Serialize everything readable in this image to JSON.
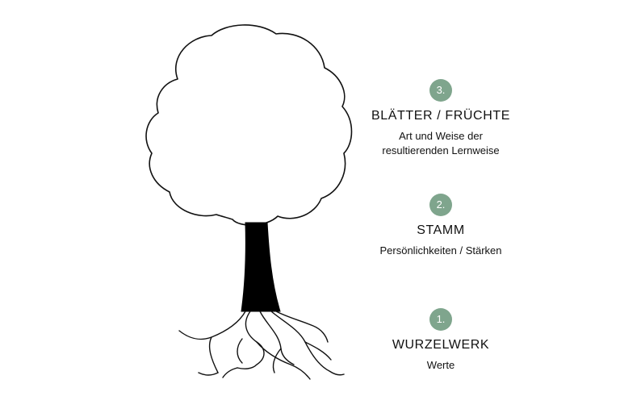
{
  "levels": [
    {
      "number": "3.",
      "heading": "BLÄTTER / FRÜCHTE",
      "description_line1": "Art und Weise der",
      "description_line2": "resultierenden Lernweise"
    },
    {
      "number": "2.",
      "heading": "STAMM",
      "description_line1": "Persönlichkeiten / Stärken",
      "description_line2": ""
    },
    {
      "number": "1.",
      "heading": "WURZELWERK",
      "description_line1": "Werte",
      "description_line2": ""
    }
  ],
  "colors": {
    "badge": "#7fa58d",
    "line": "#111111",
    "trunk": "#000000"
  },
  "icons": {
    "tree": "tree-icon"
  }
}
